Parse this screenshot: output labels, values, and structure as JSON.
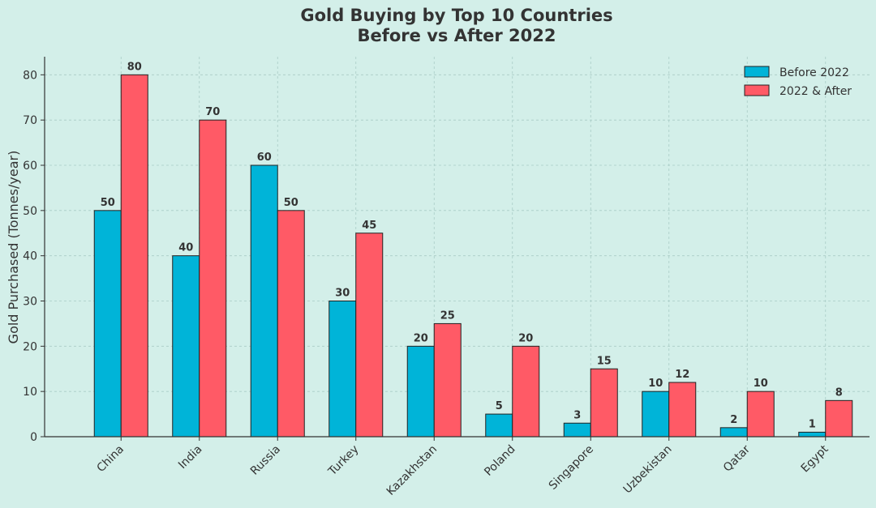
{
  "chart_data": {
    "type": "bar",
    "title_line1": "Gold Buying by Top 10 Countries",
    "title_line2": "Before vs After 2022",
    "xlabel": "",
    "ylabel": "Gold Purchased (Tonnes/year)",
    "ylim": [
      0,
      84
    ],
    "yticks": [
      0,
      10,
      20,
      30,
      40,
      50,
      60,
      70,
      80
    ],
    "grid": true,
    "legend_position": "top-right",
    "categories": [
      "China",
      "India",
      "Russia",
      "Turkey",
      "Kazakhstan",
      "Poland",
      "Singapore",
      "Uzbekistan",
      "Qatar",
      "Egypt"
    ],
    "series": [
      {
        "name": "Before 2022",
        "color": "#00b4d8",
        "values": [
          50,
          40,
          60,
          30,
          20,
          5,
          3,
          10,
          2,
          1
        ]
      },
      {
        "name": "2022 & After",
        "color": "#ff5a66",
        "values": [
          80,
          70,
          50,
          45,
          25,
          20,
          15,
          12,
          10,
          8
        ]
      }
    ]
  }
}
